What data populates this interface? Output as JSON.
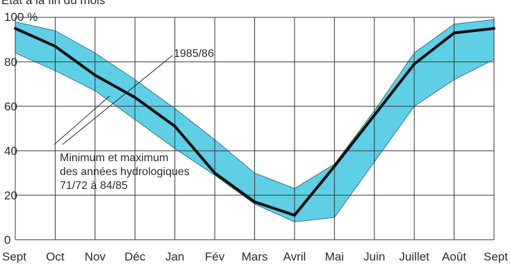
{
  "subtitle": "État à la fin du mois",
  "chart_data": {
    "type": "area",
    "title": "",
    "subtitle": "État à la fin du mois",
    "xlabel": "",
    "ylabel": "",
    "categories": [
      "Sept",
      "Oct",
      "Nov",
      "Déc",
      "Jan",
      "Fév",
      "Mars",
      "Avril",
      "Mai",
      "Juin",
      "Juillet",
      "Août",
      "Sept"
    ],
    "y_ticks": [
      "0",
      "20",
      "40",
      "60",
      "80",
      "100 %"
    ],
    "ylim": [
      0,
      100
    ],
    "grid": true,
    "colors": {
      "band": "#5fcfe6",
      "line": "#111111",
      "grid": "#333333"
    },
    "band": {
      "name": "Minimum et maximum des années hydrologiques 71/72 à 84/85",
      "max": [
        98,
        94,
        84,
        72,
        59,
        45,
        30,
        23,
        34,
        58,
        84,
        97,
        99
      ],
      "min": [
        84,
        76,
        67,
        54,
        41,
        29,
        16,
        8,
        10,
        35,
        60,
        72,
        81
      ]
    },
    "series": [
      {
        "name": "1985/86",
        "values": [
          95,
          87,
          74,
          64,
          51,
          30,
          17,
          11,
          33,
          56,
          79,
          93,
          95
        ]
      }
    ],
    "annotations": {
      "series_label": "1985/86",
      "band_label_lines": [
        "Minimum et maximum",
        "des années hydrologiques",
        "71/72 à 84/85"
      ]
    }
  }
}
